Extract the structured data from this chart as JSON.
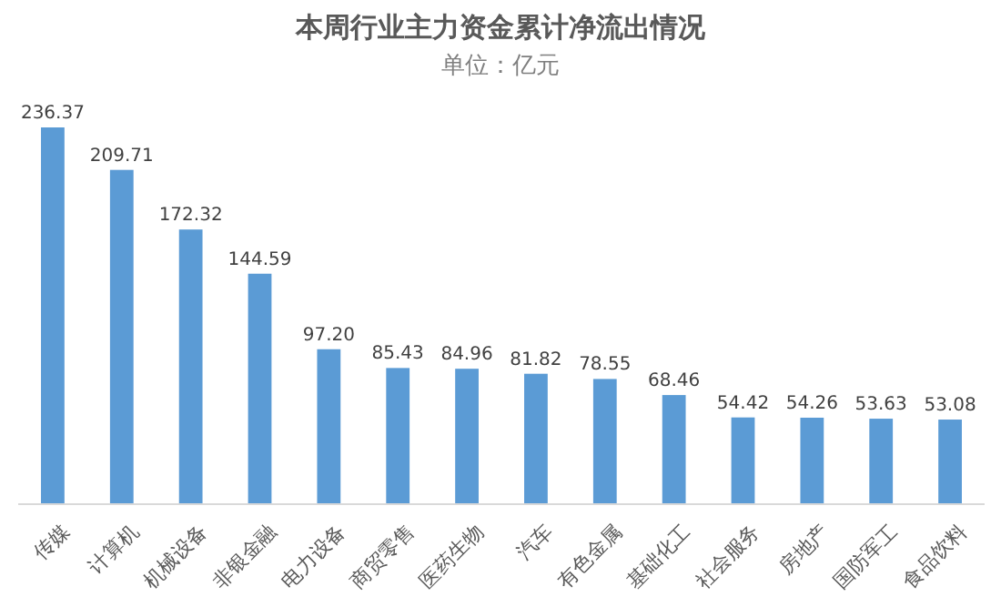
{
  "chart_data": {
    "type": "bar",
    "title": "本周行业主力资金累计净流出情况",
    "subtitle": "单位：亿元",
    "categories": [
      "传媒",
      "计算机",
      "机械设备",
      "非银金融",
      "电力设备",
      "商贸零售",
      "医药生物",
      "汽车",
      "有色金属",
      "基础化工",
      "社会服务",
      "房地产",
      "国防军工",
      "食品饮料"
    ],
    "values": [
      236.37,
      209.71,
      172.32,
      144.59,
      97.2,
      85.43,
      84.96,
      81.82,
      78.55,
      68.46,
      54.42,
      54.26,
      53.63,
      53.08
    ],
    "value_labels": [
      "236.37",
      "209.71",
      "172.32",
      "144.59",
      "97.20",
      "85.43",
      "84.96",
      "81.82",
      "78.55",
      "68.46",
      "54.42",
      "54.26",
      "53.63",
      "53.08"
    ],
    "color": "#5b9bd5",
    "data_labels": true
  }
}
